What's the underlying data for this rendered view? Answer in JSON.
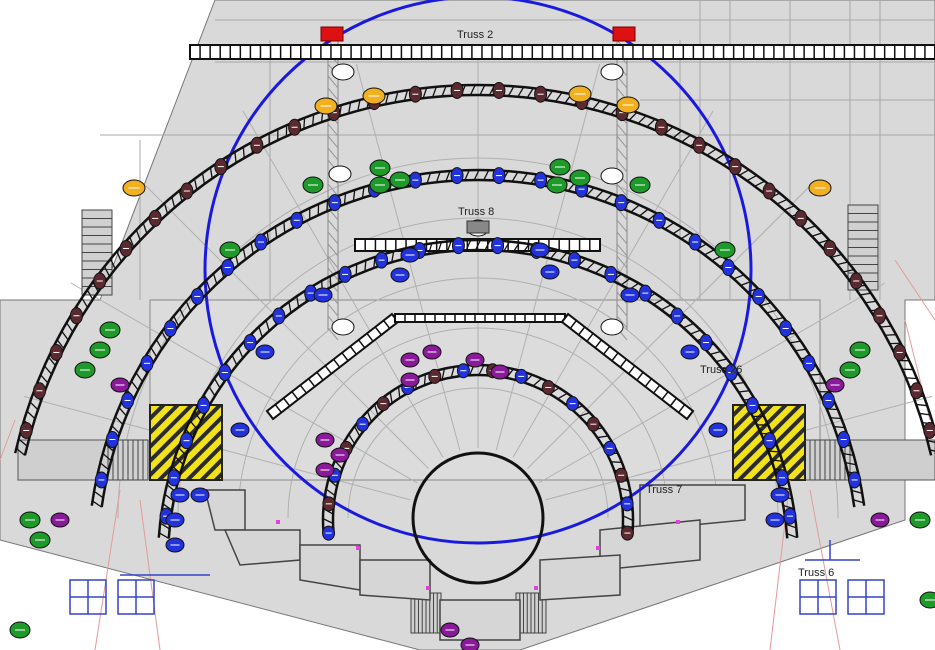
{
  "labels": {
    "truss_2": "Truss 2",
    "truss_8": "Truss 8",
    "truss_26": "Truss 26",
    "truss_7": "Truss 7",
    "truss_6": "Truss 6"
  },
  "fixture_colors": {
    "green": "#1e9a2a",
    "blue": "#2233dd",
    "purple": "#8a1a9a",
    "yellow": "#f0b020",
    "maroon": "#5a2a30",
    "red": "#dd1111"
  },
  "accent_colors": {
    "stage_ring": "#1a1adf",
    "hazard": "#f2e21a",
    "stage_floor": "#d9d9d9",
    "background": "#ffffff"
  },
  "icons": [
    "lighting-fixture-icon",
    "hazard-stripe-block",
    "staircase",
    "grid-window"
  ]
}
